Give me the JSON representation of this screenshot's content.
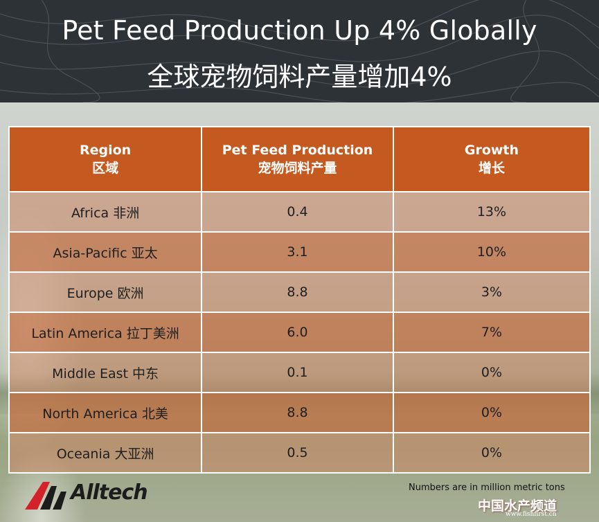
{
  "header": {
    "title_en": "Pet Feed Production Up 4% Globally",
    "title_zh": "全球宠物饲料产量增加4%"
  },
  "table": {
    "columns": [
      {
        "en": "Region",
        "zh": "区域"
      },
      {
        "en": "Pet Feed Production",
        "zh": "宠物饲料产量"
      },
      {
        "en": "Growth",
        "zh": "增长"
      }
    ],
    "rows": [
      {
        "region": "Africa 非洲",
        "production": "0.4",
        "growth": "13%"
      },
      {
        "region": "Asia-Pacific 亚太",
        "production": "3.1",
        "growth": "10%"
      },
      {
        "region": "Europe 欧洲",
        "production": "8.8",
        "growth": "3%"
      },
      {
        "region": "Latin America 拉丁美洲",
        "production": "6.0",
        "growth": "7%"
      },
      {
        "region": "Middle East 中东",
        "production": "0.1",
        "growth": "0%"
      },
      {
        "region": "North America 北美",
        "production": "8.8",
        "growth": "0%"
      },
      {
        "region": "Oceania 大亚洲",
        "production": "0.5",
        "growth": "0%"
      }
    ]
  },
  "footer": {
    "note": "Numbers are in million metric tons",
    "logo_text": "Alltech",
    "watermark": "中国水产频道",
    "watermark_url": "www.fishfirst.cn"
  },
  "colors": {
    "header_bg": "#2d3237",
    "table_header": "#c55a21",
    "logo_red": "#d2232a"
  }
}
